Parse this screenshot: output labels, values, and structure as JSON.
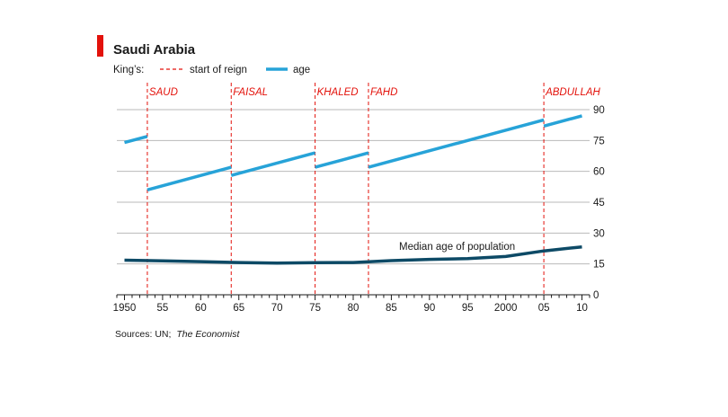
{
  "chart_data": {
    "type": "line",
    "title": "Saudi Arabia",
    "legend": {
      "prefix": "King’s:",
      "items": [
        {
          "label": "start of reign",
          "style": "dashed",
          "color": "#e3120b"
        },
        {
          "label": "age",
          "style": "solid",
          "color": "#27a3d8"
        }
      ],
      "placement": "top-left"
    },
    "xlim": [
      1949,
      2011
    ],
    "ylim": [
      0,
      90
    ],
    "x_ticks": [
      {
        "value": 1950,
        "label": "1950"
      },
      {
        "value": 1955,
        "label": "55"
      },
      {
        "value": 1960,
        "label": "60"
      },
      {
        "value": 1965,
        "label": "65"
      },
      {
        "value": 1970,
        "label": "70"
      },
      {
        "value": 1975,
        "label": "75"
      },
      {
        "value": 1980,
        "label": "80"
      },
      {
        "value": 1985,
        "label": "85"
      },
      {
        "value": 1990,
        "label": "90"
      },
      {
        "value": 1995,
        "label": "95"
      },
      {
        "value": 2000,
        "label": "2000"
      },
      {
        "value": 2005,
        "label": "05"
      },
      {
        "value": 2010,
        "label": "10"
      }
    ],
    "y_ticks": [
      {
        "value": 0,
        "label": "0"
      },
      {
        "value": 15,
        "label": "15"
      },
      {
        "value": 30,
        "label": "30"
      },
      {
        "value": 45,
        "label": "45"
      },
      {
        "value": 60,
        "label": "60"
      },
      {
        "value": 75,
        "label": "75"
      },
      {
        "value": 90,
        "label": "90"
      }
    ],
    "y_axis_side": "right",
    "grid": "horizontal",
    "reign_starts": [
      {
        "king": "SAUD",
        "year": 1953
      },
      {
        "king": "FAISAL",
        "year": 1964
      },
      {
        "king": "KHALED",
        "year": 1975
      },
      {
        "king": "FAHD",
        "year": 1982
      },
      {
        "king": "ABDULLAH",
        "year": 2005
      }
    ],
    "king_age_series": [
      {
        "points": [
          [
            1950,
            74
          ],
          [
            1953,
            77
          ]
        ]
      },
      {
        "points": [
          [
            1953,
            51
          ],
          [
            1964,
            62
          ]
        ]
      },
      {
        "points": [
          [
            1964,
            58
          ],
          [
            1975,
            69
          ]
        ]
      },
      {
        "points": [
          [
            1975,
            62
          ],
          [
            1982,
            69
          ]
        ]
      },
      {
        "points": [
          [
            1982,
            62
          ],
          [
            2005,
            85
          ]
        ]
      },
      {
        "points": [
          [
            2005,
            82
          ],
          [
            2010,
            87
          ]
        ]
      }
    ],
    "median_age": {
      "label": "Median age of population",
      "color": "#0d4a66",
      "points": [
        [
          1950,
          16.8
        ],
        [
          1955,
          16.5
        ],
        [
          1960,
          16.1
        ],
        [
          1965,
          15.7
        ],
        [
          1970,
          15.4
        ],
        [
          1975,
          15.6
        ],
        [
          1980,
          15.7
        ],
        [
          1985,
          16.6
        ],
        [
          1990,
          17.2
        ],
        [
          1995,
          17.6
        ],
        [
          2000,
          18.6
        ],
        [
          2005,
          21.3
        ],
        [
          2010,
          23.3
        ]
      ]
    },
    "source": "Sources: UN;",
    "source_italic": "The Economist"
  }
}
